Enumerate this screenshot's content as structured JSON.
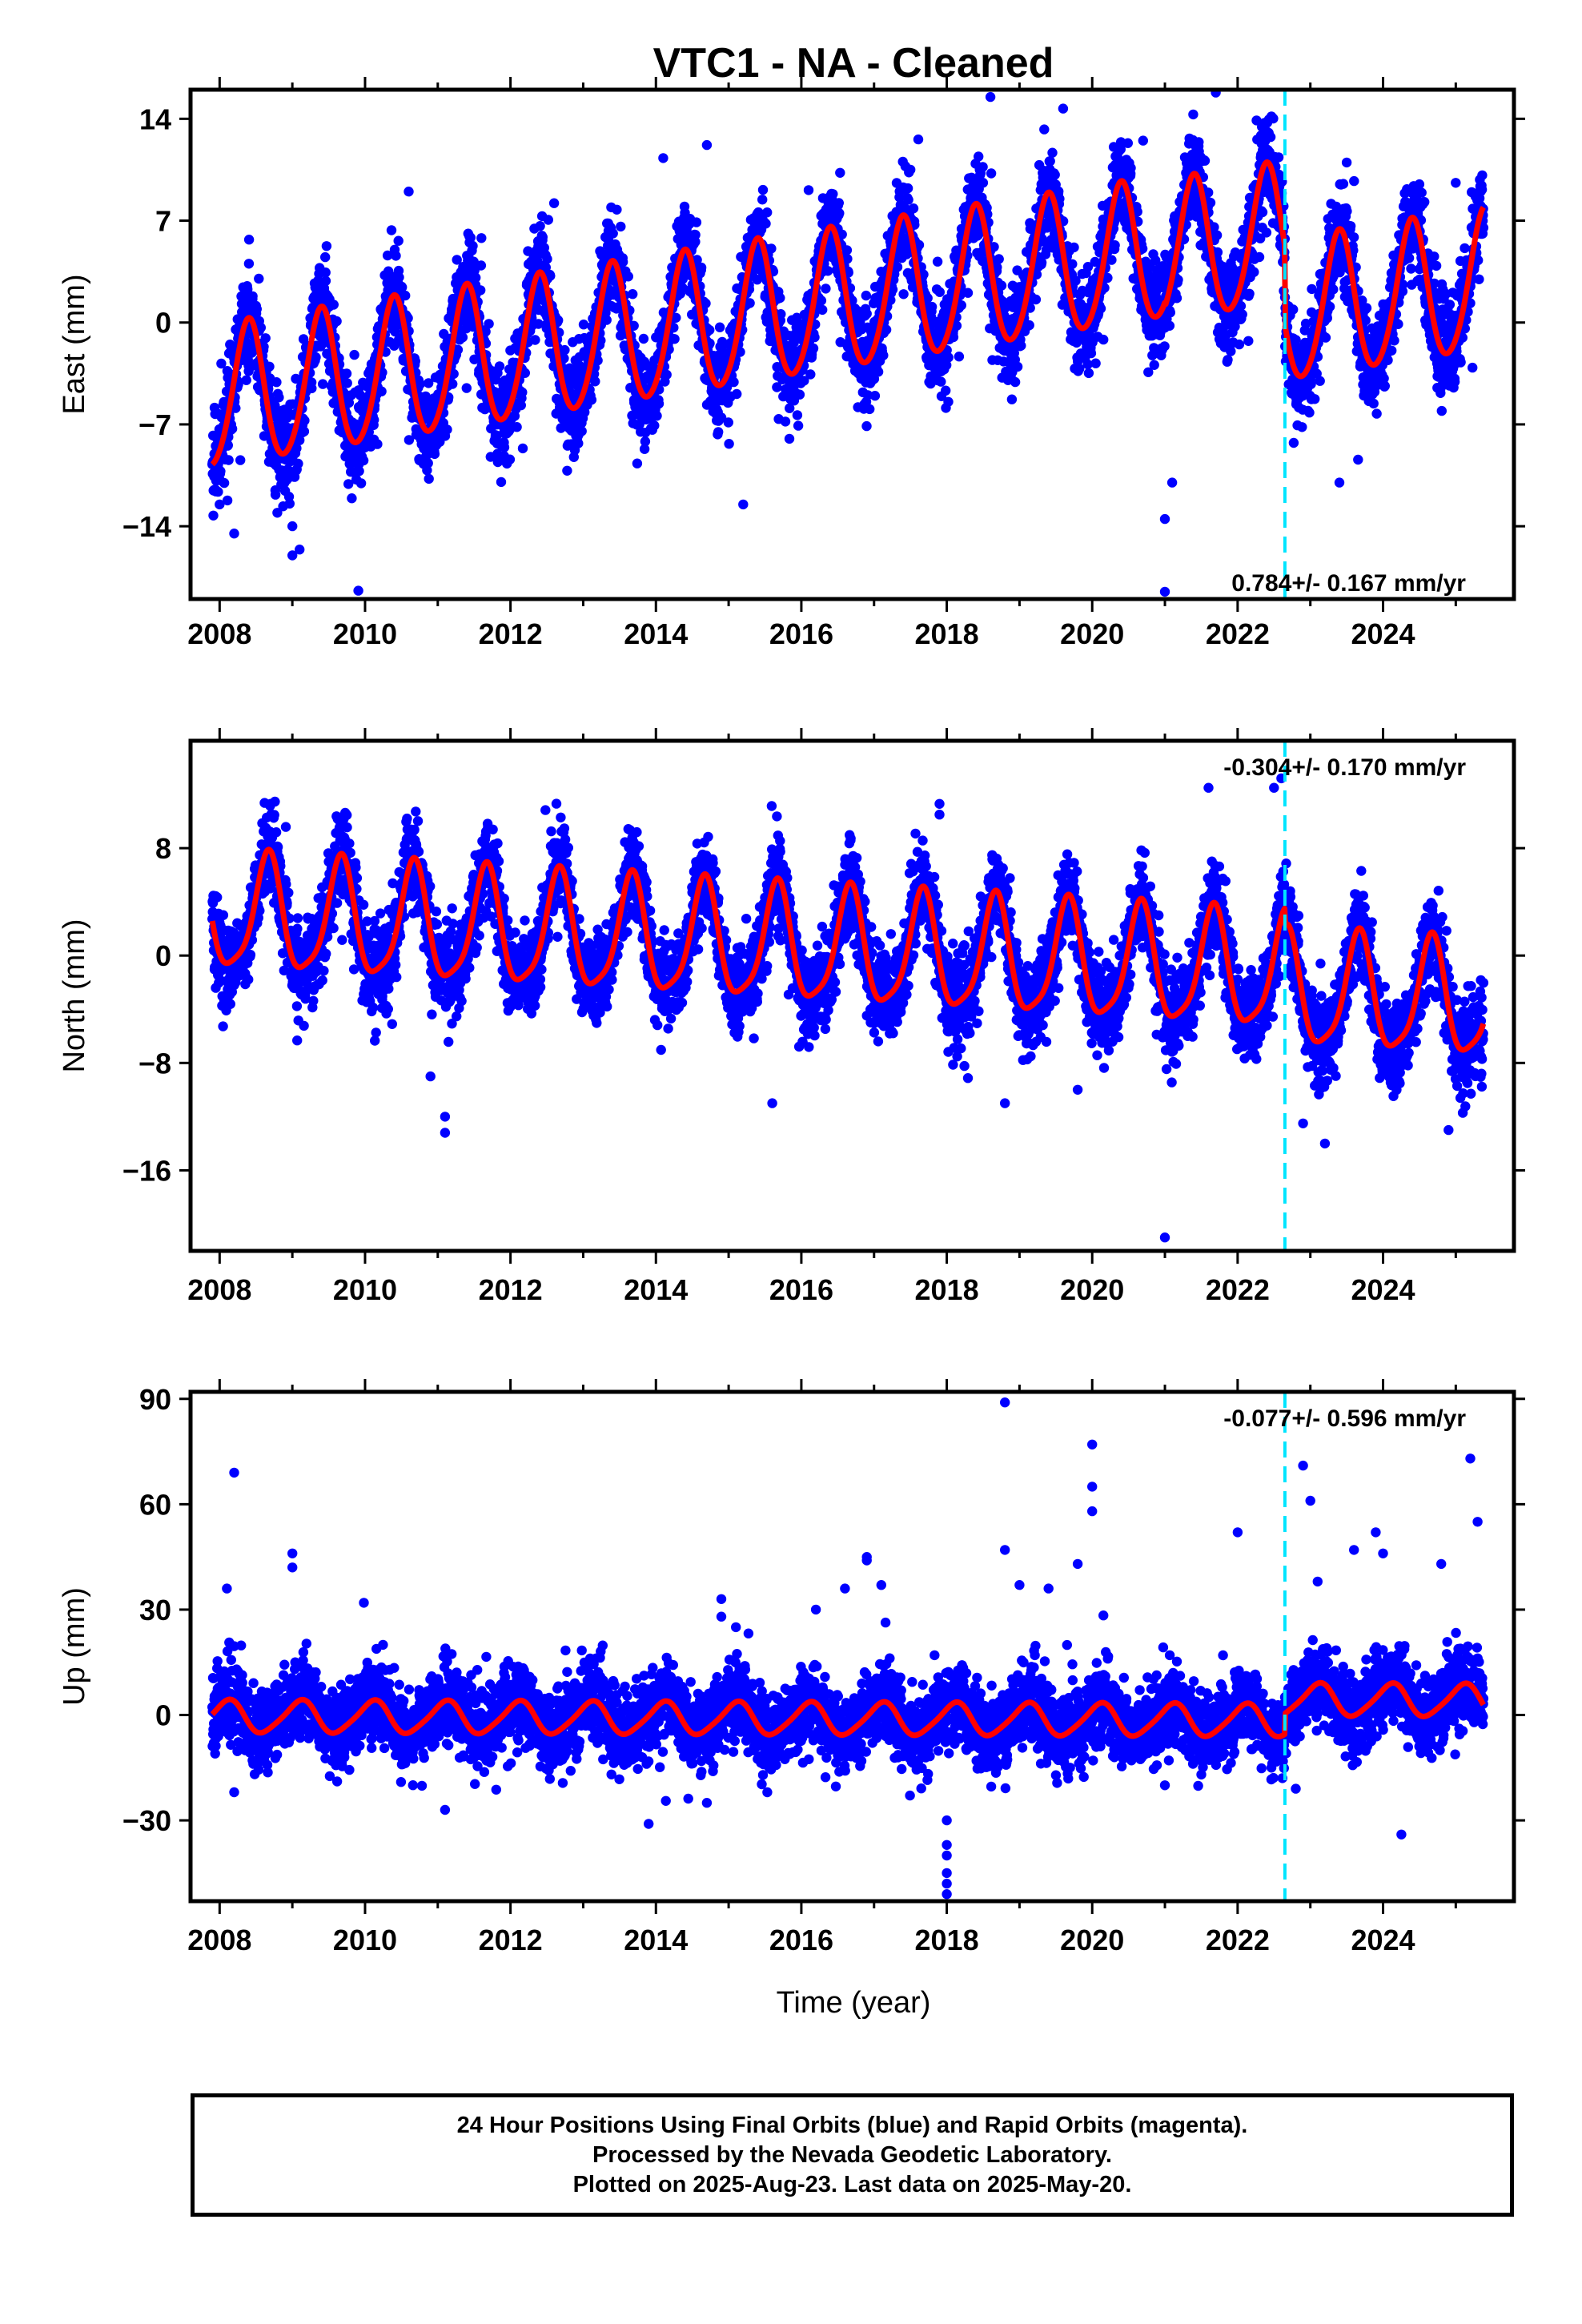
{
  "title": "VTC1  - NA - Cleaned",
  "xaxis_label": "Time (year)",
  "footer": {
    "line1": "24 Hour Positions Using Final Orbits (blue) and Rapid Orbits (magenta).",
    "line2": "Processed by the Nevada Geodetic Laboratory.",
    "line3": "Plotted on 2025-Aug-23. Last data on 2025-May-20."
  },
  "colors": {
    "points": "#0000ff",
    "model": "#ff0000",
    "event_line": "#00e5ff",
    "frame": "#000000"
  },
  "chart_data": [
    {
      "type": "scatter",
      "name": "east",
      "ylabel": "East (mm)",
      "xlim": [
        2007.6,
        2025.8
      ],
      "ylim": [
        -19,
        16
      ],
      "yticks": [
        14,
        7,
        0,
        -7,
        -14
      ],
      "xticks": [
        2008,
        2010,
        2012,
        2014,
        2016,
        2018,
        2020,
        2022,
        2024
      ],
      "rate_text": "0.784+/- 0.167 mm/yr",
      "event_line_x": 2022.65,
      "data_span": [
        2007.9,
        2025.38
      ],
      "model": {
        "segments": [
          {
            "from": 2007.9,
            "to": 2021.0,
            "intercept": -5.3,
            "slope": 0.784,
            "annual": [
              3.0,
              -3.8
            ],
            "semiannual": [
              -0.4,
              0.3
            ],
            "anchor": 2008.0
          },
          {
            "from": 2021.0,
            "to": 2022.65,
            "intercept": 5.0,
            "slope": 0.784,
            "annual": [
              3.0,
              -3.8
            ],
            "semiannual": [
              -0.4,
              0.3
            ],
            "anchor": 2021.5
          },
          {
            "from": 2022.65,
            "to": 2025.38,
            "intercept": 1.2,
            "slope": 0.784,
            "annual": [
              3.0,
              -3.8
            ],
            "semiannual": [
              -0.4,
              0.3
            ],
            "anchor": 2023.5
          }
        ],
        "scatter_sd": 1.6
      },
      "outliers": [
        [
          2008.0,
          -12.5
        ],
        [
          2008.2,
          -14.5
        ],
        [
          2009.0,
          -14.0
        ],
        [
          2009.1,
          -15.6
        ],
        [
          2009.0,
          -16.0
        ],
        [
          2010.6,
          9.0
        ],
        [
          2011.6,
          5.8
        ],
        [
          2012.6,
          8.2
        ],
        [
          2014.1,
          11.3
        ],
        [
          2014.7,
          12.2
        ],
        [
          2015.2,
          -12.5
        ],
        [
          2016.1,
          9.1
        ],
        [
          2018.6,
          15.5
        ],
        [
          2019.6,
          14.7
        ],
        [
          2021.0,
          -18.5
        ],
        [
          2021.0,
          -13.5
        ],
        [
          2021.1,
          -11.0
        ],
        [
          2021.7,
          15.8
        ],
        [
          2023.4,
          -11.0
        ],
        [
          2023.5,
          11.0
        ],
        [
          2024.5,
          9.5
        ],
        [
          2025.0,
          9.6
        ],
        [
          2017.5,
          10.5
        ],
        [
          2020.7,
          12.5
        ]
      ]
    },
    {
      "type": "scatter",
      "name": "north",
      "ylabel": "North (mm)",
      "xlim": [
        2007.6,
        2025.8
      ],
      "ylim": [
        -22,
        16
      ],
      "yticks": [
        8,
        0,
        -8,
        -16
      ],
      "xticks": [
        2008,
        2010,
        2012,
        2014,
        2016,
        2018,
        2020,
        2022,
        2024
      ],
      "rate_text": "-0.304+/- 0.170 mm/yr",
      "event_line_x": 2022.65,
      "data_span": [
        2007.9,
        2025.38
      ],
      "model": {
        "segments": [
          {
            "from": 2007.9,
            "to": 2022.65,
            "intercept": 3.0,
            "slope": -0.304,
            "annual": [
              -3.6,
              -2.2
            ],
            "semiannual": [
              0.6,
              -0.7
            ],
            "anchor": 2008.0
          },
          {
            "from": 2022.65,
            "to": 2025.38,
            "intercept": -3.0,
            "slope": -0.304,
            "annual": [
              -3.6,
              -2.2
            ],
            "semiannual": [
              0.6,
              -0.7
            ],
            "anchor": 2023.5
          }
        ],
        "scatter_sd": 1.6
      },
      "outliers": [
        [
          2011.1,
          -12.0
        ],
        [
          2011.1,
          -13.2
        ],
        [
          2010.9,
          -9.0
        ],
        [
          2017.9,
          11.3
        ],
        [
          2017.9,
          10.5
        ],
        [
          2018.8,
          -11.0
        ],
        [
          2021.0,
          -21.0
        ],
        [
          2021.6,
          12.5
        ],
        [
          2022.5,
          12.5
        ],
        [
          2022.6,
          13.2
        ],
        [
          2022.9,
          -12.5
        ],
        [
          2023.2,
          -14.0
        ],
        [
          2024.9,
          -13.0
        ],
        [
          2015.6,
          -11.0
        ],
        [
          2019.8,
          -10.0
        ]
      ]
    },
    {
      "type": "scatter",
      "name": "up",
      "ylabel": "Up (mm)",
      "xlim": [
        2007.6,
        2025.8
      ],
      "ylim": [
        -53,
        92
      ],
      "yticks": [
        90,
        60,
        30,
        0,
        -30
      ],
      "xticks": [
        2008,
        2010,
        2012,
        2014,
        2016,
        2018,
        2020,
        2022,
        2024
      ],
      "rate_text": "-0.077+/- 0.596 mm/yr",
      "event_line_x": 2022.65,
      "data_span": [
        2007.9,
        2025.38
      ],
      "model": {
        "segments": [
          {
            "from": 2007.9,
            "to": 2022.65,
            "intercept": -0.5,
            "slope": -0.077,
            "annual": [
              2.8,
              3.6
            ],
            "semiannual": [
              0.4,
              -0.6
            ],
            "anchor": 2008.0
          },
          {
            "from": 2022.65,
            "to": 2025.38,
            "intercept": 4.2,
            "slope": -0.077,
            "annual": [
              2.8,
              3.6
            ],
            "semiannual": [
              0.4,
              -0.6
            ],
            "anchor": 2023.5
          }
        ],
        "scatter_sd": 5.5
      },
      "outliers": [
        [
          2008.2,
          69.0
        ],
        [
          2008.1,
          36.0
        ],
        [
          2008.2,
          -22.0
        ],
        [
          2009.0,
          46.0
        ],
        [
          2009.0,
          42.0
        ],
        [
          2011.1,
          -27.0
        ],
        [
          2013.9,
          -31.0
        ],
        [
          2014.9,
          33.0
        ],
        [
          2014.9,
          28.0
        ],
        [
          2015.1,
          25.0
        ],
        [
          2016.9,
          45.0
        ],
        [
          2016.9,
          44.0
        ],
        [
          2017.1,
          37.0
        ],
        [
          2016.6,
          36.0
        ],
        [
          2018.0,
          -40.0
        ],
        [
          2018.0,
          -45.0
        ],
        [
          2018.0,
          -48.0
        ],
        [
          2018.0,
          -51.0
        ],
        [
          2018.0,
          -37.0
        ],
        [
          2018.0,
          -30.0
        ],
        [
          2018.8,
          89.0
        ],
        [
          2018.8,
          47.0
        ],
        [
          2019.0,
          37.0
        ],
        [
          2019.4,
          36.0
        ],
        [
          2020.0,
          77.0
        ],
        [
          2020.0,
          65.0
        ],
        [
          2020.0,
          58.0
        ],
        [
          2019.8,
          43.0
        ],
        [
          2022.0,
          52.0
        ],
        [
          2022.8,
          -21.0
        ],
        [
          2022.9,
          71.0
        ],
        [
          2023.0,
          61.0
        ],
        [
          2023.1,
          38.0
        ],
        [
          2023.6,
          47.0
        ],
        [
          2023.9,
          52.0
        ],
        [
          2024.0,
          46.0
        ],
        [
          2024.8,
          43.0
        ],
        [
          2025.2,
          73.0
        ],
        [
          2025.3,
          55.0
        ],
        [
          2021.0,
          -20.0
        ],
        [
          2014.7,
          -25.0
        ],
        [
          2016.2,
          30.0
        ]
      ]
    }
  ]
}
